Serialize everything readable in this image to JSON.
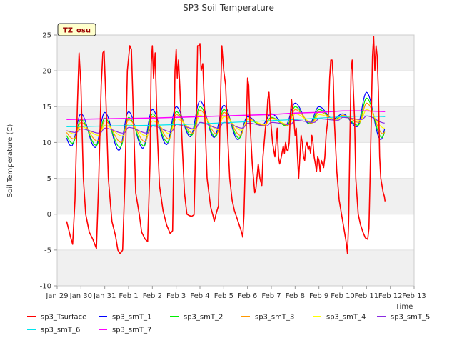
{
  "chart_data": {
    "type": "line",
    "title": "SP3 Soil Temperature",
    "xlabel": "Time",
    "ylabel": "Soil Temperature (C)",
    "badge": "TZ_osu",
    "ylim": [
      -10,
      25
    ],
    "yticks": [
      -10,
      -5,
      0,
      5,
      10,
      15,
      20,
      25
    ],
    "xlim": [
      0,
      15
    ],
    "xticks": [
      0,
      1,
      2,
      3,
      4,
      5,
      6,
      7,
      8,
      9,
      10,
      11,
      12,
      13,
      14,
      15
    ],
    "xtick_labels": [
      "Jan 29",
      "Jan 30",
      "Jan 31",
      "Feb 1",
      "Feb 2",
      "Feb 3",
      "Feb 4",
      "Feb 5",
      "Feb 6",
      "Feb 7",
      "Feb 8",
      "Feb 9",
      "Feb 10",
      "Feb 11",
      "Feb 12",
      "Feb 13"
    ],
    "x_unit": "days since Jan 29 00:00",
    "bands": [
      [
        20,
        25
      ],
      [
        10,
        15
      ],
      [
        0,
        5
      ],
      [
        -10,
        -5
      ]
    ],
    "series": [
      {
        "name": "sp3_Tsurface",
        "color": "#ff0000",
        "width": 1.6,
        "points": [
          [
            0.4,
            -1
          ],
          [
            0.55,
            -3
          ],
          [
            0.65,
            -4.2
          ],
          [
            0.75,
            2
          ],
          [
            0.85,
            15
          ],
          [
            0.92,
            22.5
          ],
          [
            1.0,
            18
          ],
          [
            1.1,
            5
          ],
          [
            1.2,
            0
          ],
          [
            1.35,
            -2.5
          ],
          [
            1.5,
            -3.5
          ],
          [
            1.65,
            -4.8
          ],
          [
            1.75,
            5
          ],
          [
            1.85,
            18
          ],
          [
            1.92,
            22.5
          ],
          [
            1.97,
            22.8
          ],
          [
            2.05,
            16
          ],
          [
            2.15,
            5
          ],
          [
            2.3,
            -1
          ],
          [
            2.45,
            -3
          ],
          [
            2.55,
            -5
          ],
          [
            2.65,
            -5.5
          ],
          [
            2.75,
            -5
          ],
          [
            2.85,
            5
          ],
          [
            2.95,
            20
          ],
          [
            3.05,
            23.5
          ],
          [
            3.12,
            23
          ],
          [
            3.2,
            14
          ],
          [
            3.3,
            3
          ],
          [
            3.45,
            0
          ],
          [
            3.55,
            -2.5
          ],
          [
            3.7,
            -3.5
          ],
          [
            3.8,
            -3.8
          ],
          [
            3.9,
            7
          ],
          [
            3.95,
            21
          ],
          [
            4.0,
            23.5
          ],
          [
            4.05,
            19
          ],
          [
            4.12,
            22.5
          ],
          [
            4.2,
            12
          ],
          [
            4.3,
            4
          ],
          [
            4.45,
            0.5
          ],
          [
            4.6,
            -1.5
          ],
          [
            4.75,
            -2.7
          ],
          [
            4.85,
            -2.3
          ],
          [
            4.9,
            8
          ],
          [
            4.95,
            20
          ],
          [
            5.0,
            23
          ],
          [
            5.05,
            19
          ],
          [
            5.1,
            21.5
          ],
          [
            5.15,
            18
          ],
          [
            5.25,
            10
          ],
          [
            5.35,
            3
          ],
          [
            5.45,
            0
          ],
          [
            5.55,
            -0.2
          ],
          [
            5.65,
            -0.3
          ],
          [
            5.75,
            -0.1
          ],
          [
            5.85,
            14
          ],
          [
            5.9,
            23.5
          ],
          [
            5.95,
            23.5
          ],
          [
            6.0,
            23.8
          ],
          [
            6.05,
            20
          ],
          [
            6.12,
            21
          ],
          [
            6.2,
            14
          ],
          [
            6.3,
            5
          ],
          [
            6.45,
            1
          ],
          [
            6.55,
            -0.2
          ],
          [
            6.6,
            -1
          ],
          [
            6.7,
            0.3
          ],
          [
            6.78,
            1.2
          ],
          [
            6.85,
            14
          ],
          [
            6.92,
            23.5
          ],
          [
            7.0,
            20
          ],
          [
            7.08,
            18
          ],
          [
            7.15,
            12
          ],
          [
            7.25,
            5
          ],
          [
            7.35,
            2
          ],
          [
            7.45,
            0.5
          ],
          [
            7.55,
            -0.5
          ],
          [
            7.65,
            -1.5
          ],
          [
            7.75,
            -2.5
          ],
          [
            7.8,
            -3.2
          ],
          [
            7.85,
            0
          ],
          [
            7.92,
            9
          ],
          [
            8.0,
            19
          ],
          [
            8.05,
            18
          ],
          [
            8.1,
            13
          ],
          [
            8.2,
            7
          ],
          [
            8.3,
            3
          ],
          [
            8.35,
            3.5
          ],
          [
            8.45,
            7
          ],
          [
            8.52,
            5
          ],
          [
            8.6,
            4
          ],
          [
            8.65,
            8
          ],
          [
            8.75,
            12
          ],
          [
            8.8,
            13
          ],
          [
            8.85,
            16
          ],
          [
            8.9,
            17
          ],
          [
            8.95,
            14
          ],
          [
            9.0,
            12
          ],
          [
            9.05,
            10
          ],
          [
            9.1,
            9
          ],
          [
            9.15,
            8
          ],
          [
            9.2,
            10
          ],
          [
            9.25,
            12
          ],
          [
            9.3,
            8
          ],
          [
            9.35,
            7
          ],
          [
            9.42,
            8
          ],
          [
            9.5,
            9.5
          ],
          [
            9.55,
            8.5
          ],
          [
            9.6,
            10
          ],
          [
            9.65,
            9
          ],
          [
            9.7,
            8.8
          ],
          [
            9.75,
            10
          ],
          [
            9.8,
            14
          ],
          [
            9.85,
            16
          ],
          [
            9.9,
            14
          ],
          [
            9.95,
            13
          ],
          [
            10.0,
            11
          ],
          [
            10.05,
            12
          ],
          [
            10.1,
            8
          ],
          [
            10.15,
            5
          ],
          [
            10.2,
            8
          ],
          [
            10.25,
            11
          ],
          [
            10.3,
            10
          ],
          [
            10.35,
            8
          ],
          [
            10.4,
            7.5
          ],
          [
            10.45,
            9.5
          ],
          [
            10.5,
            10
          ],
          [
            10.55,
            9
          ],
          [
            10.6,
            9.5
          ],
          [
            10.65,
            8.5
          ],
          [
            10.7,
            11
          ],
          [
            10.75,
            10
          ],
          [
            10.8,
            8
          ],
          [
            10.85,
            7
          ],
          [
            10.9,
            6
          ],
          [
            10.95,
            8
          ],
          [
            11.0,
            7.5
          ],
          [
            11.05,
            6
          ],
          [
            11.1,
            7.5
          ],
          [
            11.15,
            7
          ],
          [
            11.2,
            6.5
          ],
          [
            11.25,
            8
          ],
          [
            11.3,
            11
          ],
          [
            11.4,
            14
          ],
          [
            11.45,
            19
          ],
          [
            11.5,
            21.5
          ],
          [
            11.55,
            21.5
          ],
          [
            11.6,
            19
          ],
          [
            11.65,
            13
          ],
          [
            11.75,
            6
          ],
          [
            11.85,
            2
          ],
          [
            11.95,
            0
          ],
          [
            12.05,
            -2
          ],
          [
            12.15,
            -4
          ],
          [
            12.2,
            -5.5
          ],
          [
            12.25,
            -1
          ],
          [
            12.3,
            10
          ],
          [
            12.35,
            20
          ],
          [
            12.4,
            21.5
          ],
          [
            12.45,
            17
          ],
          [
            12.5,
            13
          ],
          [
            12.55,
            5
          ],
          [
            12.65,
            0
          ],
          [
            12.75,
            -1.5
          ],
          [
            12.85,
            -2.5
          ],
          [
            12.95,
            -3.3
          ],
          [
            13.05,
            -3.5
          ],
          [
            13.1,
            -2
          ],
          [
            13.15,
            5
          ],
          [
            13.25,
            22
          ],
          [
            13.3,
            24.8
          ],
          [
            13.35,
            20
          ],
          [
            13.4,
            23.5
          ],
          [
            13.45,
            22
          ],
          [
            13.5,
            17
          ],
          [
            13.55,
            8
          ],
          [
            13.6,
            5
          ],
          [
            13.65,
            4
          ],
          [
            13.7,
            3
          ],
          [
            13.75,
            2.5
          ],
          [
            13.78,
            1.8
          ]
        ]
      },
      {
        "name": "sp3_smT_1",
        "color": "#0000ff",
        "width": 1.2,
        "kind": "wave",
        "peaks": [
          14,
          14.2,
          14.3,
          14.6,
          15,
          15.8,
          15.2,
          13.6,
          14,
          15.5,
          15,
          14,
          17,
          14.8,
          15.6
        ],
        "troughs": [
          9.5,
          9.3,
          8.9,
          9.2,
          9.7,
          10.8,
          10.7,
          10.4,
          12.4,
          12.4,
          12.6,
          13.3,
          12.2,
          10.4,
          12.3
        ],
        "peak_phase": 1.0,
        "trough_phase": 0.6,
        "x0": 0.4,
        "x1": 13.78
      },
      {
        "name": "sp3_smT_2",
        "color": "#00ee00",
        "width": 1.2,
        "kind": "wave",
        "peaks": [
          13.2,
          13.4,
          13.5,
          14,
          14.3,
          15,
          14.6,
          13.3,
          13.5,
          15,
          14.6,
          13.8,
          16.2,
          14.2,
          15
        ],
        "troughs": [
          9.9,
          9.6,
          9.3,
          9.5,
          10,
          11,
          10.8,
          10.6,
          12.3,
          12.3,
          12.6,
          13.2,
          12.4,
          10.7,
          12.4
        ],
        "peak_phase": 1.05,
        "trough_phase": 0.65,
        "x0": 0.4,
        "x1": 13.78
      },
      {
        "name": "sp3_smT_3",
        "color": "#ff9900",
        "width": 1.2,
        "kind": "wave",
        "peaks": [
          12.8,
          13,
          13.2,
          13.6,
          13.9,
          14.5,
          14.2,
          13.3,
          13.4,
          14.6,
          14.3,
          13.8,
          15.5,
          14,
          14.6
        ],
        "troughs": [
          10.5,
          10.2,
          10,
          10.1,
          10.5,
          11.3,
          11.2,
          11,
          12.4,
          12.4,
          12.7,
          13.2,
          12.8,
          11.2,
          12.6
        ],
        "peak_phase": 1.1,
        "trough_phase": 0.7,
        "x0": 0.4,
        "x1": 13.78
      },
      {
        "name": "sp3_smT_4",
        "color": "#ffff00",
        "width": 1.2,
        "kind": "wave",
        "peaks": [
          12.2,
          12.4,
          12.6,
          13,
          13.3,
          13.8,
          13.6,
          13.2,
          13.3,
          14,
          13.9,
          13.7,
          14.6,
          13.8,
          14.2
        ],
        "troughs": [
          11.2,
          11,
          10.9,
          10.9,
          11.2,
          11.8,
          11.8,
          11.7,
          12.5,
          12.5,
          12.8,
          13.2,
          13.1,
          12,
          12.8
        ],
        "peak_phase": 1.15,
        "trough_phase": 0.75,
        "x0": 0.4,
        "x1": 13.78
      },
      {
        "name": "sp3_smT_5",
        "color": "#8a2be2",
        "width": 1.2,
        "kind": "wave",
        "peaks": [
          11.9,
          12,
          12.1,
          12.3,
          12.5,
          12.8,
          12.8,
          12.7,
          12.8,
          13.1,
          13.3,
          13.5,
          13.7,
          13.4,
          13.2
        ],
        "troughs": [
          11.4,
          11.3,
          11.3,
          11.3,
          11.5,
          11.9,
          12,
          12,
          12.3,
          12.5,
          12.8,
          13.1,
          13.2,
          12.7,
          12.9
        ],
        "peak_phase": 1.2,
        "trough_phase": 0.8,
        "x0": 0.4,
        "x1": 13.78
      },
      {
        "name": "sp3_smT_6",
        "color": "#00e5ee",
        "width": 1.2,
        "kind": "line",
        "points": [
          [
            0.4,
            12.2
          ],
          [
            2,
            12.3
          ],
          [
            4,
            12.4
          ],
          [
            6,
            12.6
          ],
          [
            8,
            12.9
          ],
          [
            10,
            13.2
          ],
          [
            11,
            13.4
          ],
          [
            12,
            13.6
          ],
          [
            13,
            13.7
          ],
          [
            13.78,
            13.6
          ]
        ]
      },
      {
        "name": "sp3_smT_7",
        "color": "#ff00ff",
        "width": 1.5,
        "kind": "line",
        "points": [
          [
            0.4,
            13.2
          ],
          [
            2,
            13.3
          ],
          [
            4,
            13.4
          ],
          [
            6,
            13.6
          ],
          [
            8,
            13.8
          ],
          [
            9,
            13.9
          ],
          [
            10,
            14.1
          ],
          [
            11,
            14.2
          ],
          [
            12,
            14.4
          ],
          [
            13,
            14.4
          ],
          [
            13.78,
            14.3
          ]
        ]
      }
    ]
  }
}
